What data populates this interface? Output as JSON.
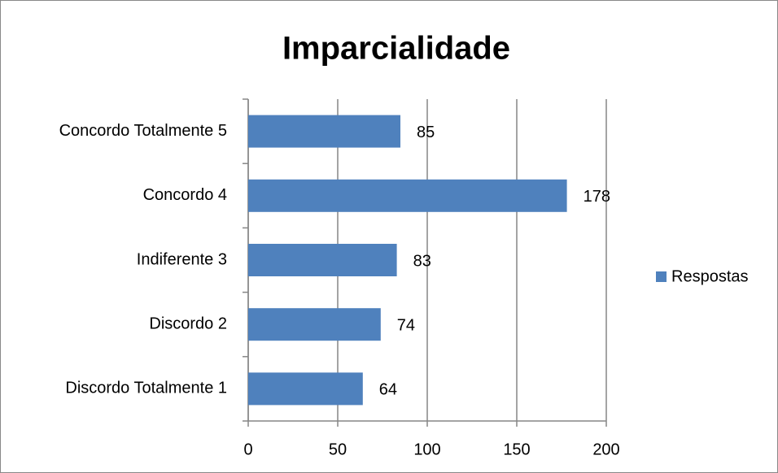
{
  "chart_data": {
    "type": "bar",
    "orientation": "horizontal",
    "title": "Imparcialidade",
    "categories": [
      "Concordo Totalmente 5",
      "Concordo 4",
      "Indiferente 3",
      "Discordo 2",
      "Discordo Totalmente 1"
    ],
    "series": [
      {
        "name": "Respostas",
        "color": "#4f81bd",
        "values": [
          85,
          178,
          83,
          74,
          64
        ]
      }
    ],
    "xlim": [
      0,
      200
    ],
    "xticks": [
      0,
      50,
      100,
      150,
      200
    ],
    "grid": true,
    "legend": "right",
    "data_labels": true
  }
}
